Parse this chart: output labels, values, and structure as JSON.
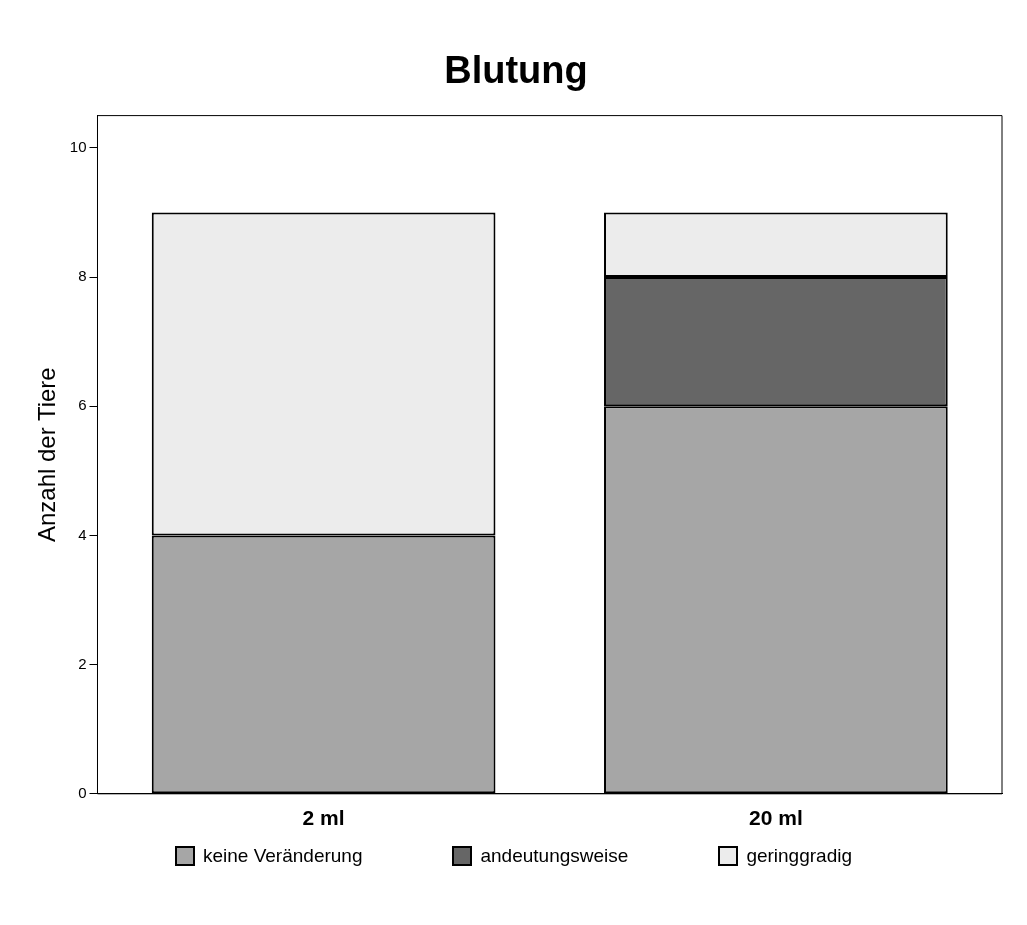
{
  "chart_data": {
    "type": "bar",
    "title": "Blutung",
    "ylabel": "Anzahl der Tiere",
    "categories": [
      "2 ml",
      "20 ml"
    ],
    "stacked": true,
    "ylim": [
      0,
      10.5
    ],
    "yticks": [
      0,
      2,
      4,
      6,
      8,
      10
    ],
    "grid": false,
    "legend": "bottom",
    "series": [
      {
        "name": "keine Veränderung",
        "color": "#a6a6a6",
        "values": [
          4,
          6
        ]
      },
      {
        "name": "andeutungsweise",
        "color": "#666666",
        "values": [
          0,
          2
        ]
      },
      {
        "name": "geringgradig",
        "color": "#ececec",
        "values": [
          5,
          1
        ]
      }
    ]
  }
}
